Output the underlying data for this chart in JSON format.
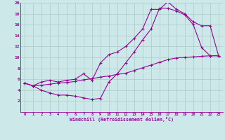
{
  "xlabel": "Windchill (Refroidissement éolien,°C)",
  "bg_color": "#cce8e8",
  "line_color": "#990099",
  "grid_color": "#aacccc",
  "xlim": [
    -0.5,
    23.5
  ],
  "ylim": [
    0,
    20
  ],
  "xticks": [
    0,
    1,
    2,
    3,
    4,
    5,
    6,
    7,
    8,
    9,
    10,
    11,
    12,
    13,
    14,
    15,
    16,
    17,
    18,
    19,
    20,
    21,
    22,
    23
  ],
  "yticks": [
    2,
    4,
    6,
    8,
    10,
    12,
    14,
    16,
    18,
    20
  ],
  "curve1_x": [
    0,
    1,
    2,
    3,
    4,
    5,
    6,
    7,
    8,
    9,
    10,
    11,
    12,
    13,
    14,
    15,
    16,
    17,
    18,
    19,
    20,
    21,
    22,
    23
  ],
  "curve1_y": [
    5.3,
    4.8,
    4.0,
    3.5,
    3.1,
    3.1,
    2.9,
    2.6,
    2.3,
    2.5,
    5.5,
    7.0,
    9.0,
    11.0,
    13.2,
    15.2,
    19.0,
    19.0,
    18.5,
    17.8,
    16.0,
    11.8,
    10.3,
    10.3
  ],
  "curve2_x": [
    0,
    1,
    2,
    3,
    4,
    5,
    6,
    7,
    8,
    9,
    10,
    11,
    12,
    13,
    14,
    15,
    16,
    17,
    18,
    19,
    20,
    21,
    22,
    23
  ],
  "curve2_y": [
    5.3,
    4.8,
    5.5,
    5.8,
    5.5,
    5.8,
    6.0,
    7.0,
    5.8,
    9.0,
    10.5,
    11.0,
    12.0,
    13.5,
    15.2,
    18.8,
    18.8,
    20.2,
    18.8,
    18.0,
    16.5,
    15.8,
    15.8,
    10.3
  ],
  "curve3_x": [
    0,
    1,
    2,
    3,
    4,
    5,
    6,
    7,
    8,
    9,
    10,
    11,
    12,
    13,
    14,
    15,
    16,
    17,
    18,
    19,
    20,
    21,
    22,
    23
  ],
  "curve3_y": [
    5.3,
    4.8,
    4.9,
    5.1,
    5.3,
    5.4,
    5.6,
    5.9,
    6.1,
    6.4,
    6.6,
    6.9,
    7.1,
    7.6,
    8.1,
    8.6,
    9.1,
    9.6,
    9.9,
    10.0,
    10.1,
    10.2,
    10.3,
    10.3
  ]
}
